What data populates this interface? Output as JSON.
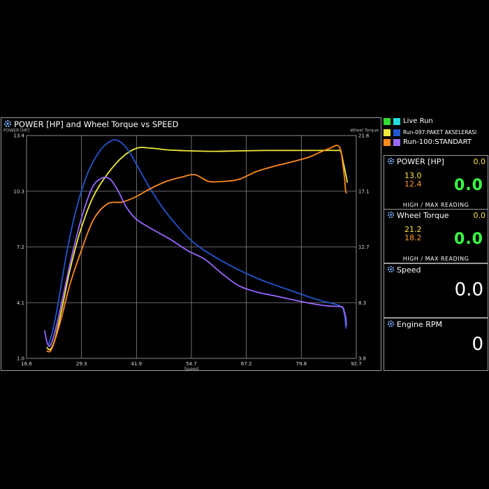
{
  "chart": {
    "title": "POWER [HP] and Wheel Torque  vs SPEED",
    "left_axis_label": "POWER [HP]",
    "right_axis_label": "Wheel Torque",
    "x_axis_label": "Speed"
  },
  "legend": [
    {
      "label": "Live Run",
      "colors": [
        "#33dd33",
        "#22dddd"
      ]
    },
    {
      "label": "Run-097:PAKET AKSELERASI",
      "colors": [
        "#f2ea3c",
        "#2255cc"
      ]
    },
    {
      "label": "Run-100:STANDART",
      "colors": [
        "#ff8a1e",
        "#9966ff"
      ]
    }
  ],
  "gauges": {
    "power": {
      "title": "POWER [HP]",
      "corner": "0.0",
      "high": "13.0",
      "max": "12.4",
      "live": "0.0",
      "footer": "HIGH / MAX READING"
    },
    "torque": {
      "title": "Wheel Torque",
      "corner": "0.0",
      "high": "21.2",
      "max": "18.2",
      "live": "0.0",
      "footer": "HIGH / MAX READING"
    },
    "speed": {
      "title": "Speed",
      "value": "0.0"
    },
    "rpm": {
      "title": "Engine RPM",
      "value": "0"
    }
  },
  "chart_data": {
    "type": "line",
    "title": "POWER [HP] and Wheel Torque  vs SPEED",
    "xlabel": "Speed",
    "ylabel": "POWER [HP]",
    "y2label": "Wheel Torque",
    "xlim": [
      16.6,
      92.7
    ],
    "ylim": [
      1.0,
      13.4
    ],
    "y2lim": [
      3.8,
      21.6
    ],
    "x_ticks": [
      "16.6",
      "29.3",
      "41.9",
      "54.7",
      "67.2",
      "79.8",
      "92.7"
    ],
    "y_ticks": [
      "1.0",
      "4.1",
      "7.2",
      "10.3",
      "13.4"
    ],
    "y2_ticks": [
      "3.8",
      "8.3",
      "12.7",
      "17.1",
      "21.6"
    ],
    "grid": true,
    "series": [
      {
        "name": "Run-097:PAKET AKSELERASI",
        "measure": "power",
        "axis": "left",
        "color": "#f2ea3c",
        "x": [
          21.3,
          22.1,
          23.2,
          24.7,
          26.6,
          28.9,
          31.8,
          35.1,
          38.7,
          42.1,
          45.2,
          49.2,
          54.0,
          60.0,
          66.2,
          72.2,
          78.3,
          84.2,
          88.0,
          89.1,
          89.7,
          90.4,
          90.6
        ],
        "y": [
          1.6,
          1.5,
          2.1,
          3.7,
          5.9,
          8.0,
          9.9,
          11.2,
          12.2,
          12.7,
          12.7,
          12.6,
          12.55,
          12.52,
          12.55,
          12.57,
          12.57,
          12.57,
          12.57,
          12.51,
          11.9,
          11.1,
          10.8
        ]
      },
      {
        "name": "Run-097:PAKET AKSELERASI",
        "measure": "torque",
        "axis": "right",
        "color": "#2255cc",
        "x": [
          21.6,
          22.7,
          24.1,
          25.9,
          28.0,
          30.6,
          33.6,
          36.3,
          38.2,
          40.3,
          42.6,
          45.6,
          49.4,
          55.0,
          61.6,
          69.1,
          76.9,
          83.6,
          88.9,
          89.9,
          90.2,
          90.3
        ],
        "y": [
          4.8,
          6.1,
          8.6,
          12.3,
          15.6,
          18.5,
          20.4,
          21.2,
          21.1,
          20.3,
          18.9,
          17.1,
          15.2,
          13.1,
          11.6,
          10.3,
          9.3,
          8.5,
          8.0,
          7.4,
          6.6,
          6.2
        ]
      },
      {
        "name": "Run-100:STANDART",
        "measure": "power",
        "axis": "left",
        "color": "#ff8a1e",
        "x": [
          21.3,
          22.1,
          23.0,
          24.7,
          26.6,
          29.1,
          32.0,
          35.3,
          38.7,
          41.9,
          45.2,
          48.9,
          52.6,
          55.5,
          58.6,
          62.1,
          65.6,
          69.7,
          73.9,
          78.1,
          81.8,
          84.6,
          86.7,
          88.3,
          89.1,
          89.6,
          90.0,
          90.2,
          90.4
        ],
        "y": [
          1.4,
          1.4,
          1.9,
          3.3,
          5.1,
          6.9,
          8.7,
          9.6,
          9.7,
          10.0,
          10.45,
          10.85,
          11.1,
          11.22,
          10.85,
          10.85,
          10.96,
          11.4,
          11.7,
          11.95,
          12.2,
          12.5,
          12.7,
          12.85,
          12.6,
          11.8,
          11.0,
          10.4,
          10.2
        ]
      },
      {
        "name": "Run-100:STANDART",
        "measure": "torque",
        "axis": "right",
        "color": "#9966ff",
        "x": [
          20.8,
          21.4,
          22.2,
          23.5,
          25.1,
          27.0,
          29.2,
          31.7,
          34.0,
          35.9,
          37.7,
          39.6,
          42.0,
          45.7,
          49.8,
          53.8,
          57.8,
          61.6,
          65.6,
          69.7,
          73.8,
          77.8,
          82.0,
          85.8,
          88.3,
          89.5,
          89.9,
          90.3,
          90.4
        ],
        "y": [
          6.0,
          5.0,
          4.9,
          6.4,
          8.9,
          11.9,
          14.9,
          17.4,
          18.2,
          18.1,
          17.2,
          15.9,
          14.9,
          14.1,
          13.3,
          12.4,
          11.7,
          10.6,
          9.6,
          9.1,
          8.8,
          8.5,
          8.2,
          8.0,
          7.95,
          7.9,
          7.6,
          7.0,
          6.4
        ]
      }
    ]
  }
}
